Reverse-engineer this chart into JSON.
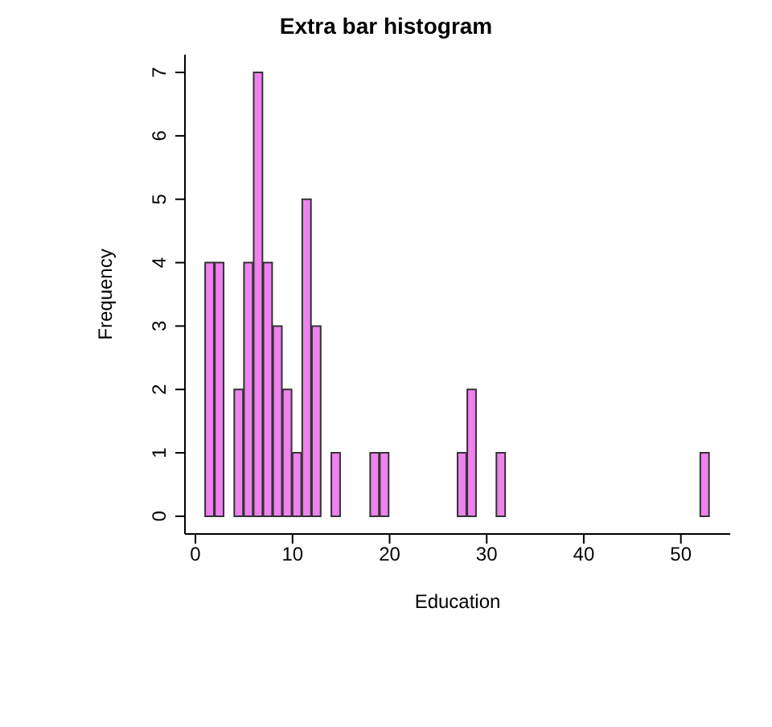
{
  "chart_data": {
    "type": "histogram",
    "title": "Extra bar histogram",
    "xlabel": "Education",
    "ylabel": "Frequency",
    "bins": [
      1,
      2,
      3,
      4,
      5,
      6,
      7,
      8,
      9,
      10,
      11,
      12,
      13,
      14,
      15,
      16,
      17,
      18,
      19,
      20,
      21,
      22,
      23,
      24,
      25,
      26,
      27,
      28,
      29,
      30,
      31,
      32,
      33,
      34,
      35,
      36,
      37,
      38,
      39,
      40,
      41,
      42,
      43,
      44,
      45,
      46,
      47,
      48,
      49,
      50,
      51,
      52,
      53
    ],
    "values": [
      4,
      4,
      0,
      2,
      4,
      7,
      4,
      3,
      2,
      1,
      5,
      3,
      0,
      1,
      0,
      0,
      0,
      1,
      1,
      0,
      0,
      0,
      0,
      0,
      0,
      0,
      1,
      2,
      0,
      0,
      1,
      0,
      0,
      0,
      0,
      0,
      0,
      0,
      0,
      0,
      0,
      0,
      0,
      0,
      0,
      0,
      0,
      0,
      0,
      0,
      0,
      1
    ],
    "color": "#ee82ee",
    "xlim": [
      -1.08,
      55.08
    ],
    "xticks": [
      0,
      10,
      20,
      30,
      40,
      50
    ],
    "ylim": [
      -0.28,
      7.28
    ],
    "yticks": [
      0,
      1,
      2,
      3,
      4,
      5,
      6,
      7
    ],
    "grid": false
  }
}
